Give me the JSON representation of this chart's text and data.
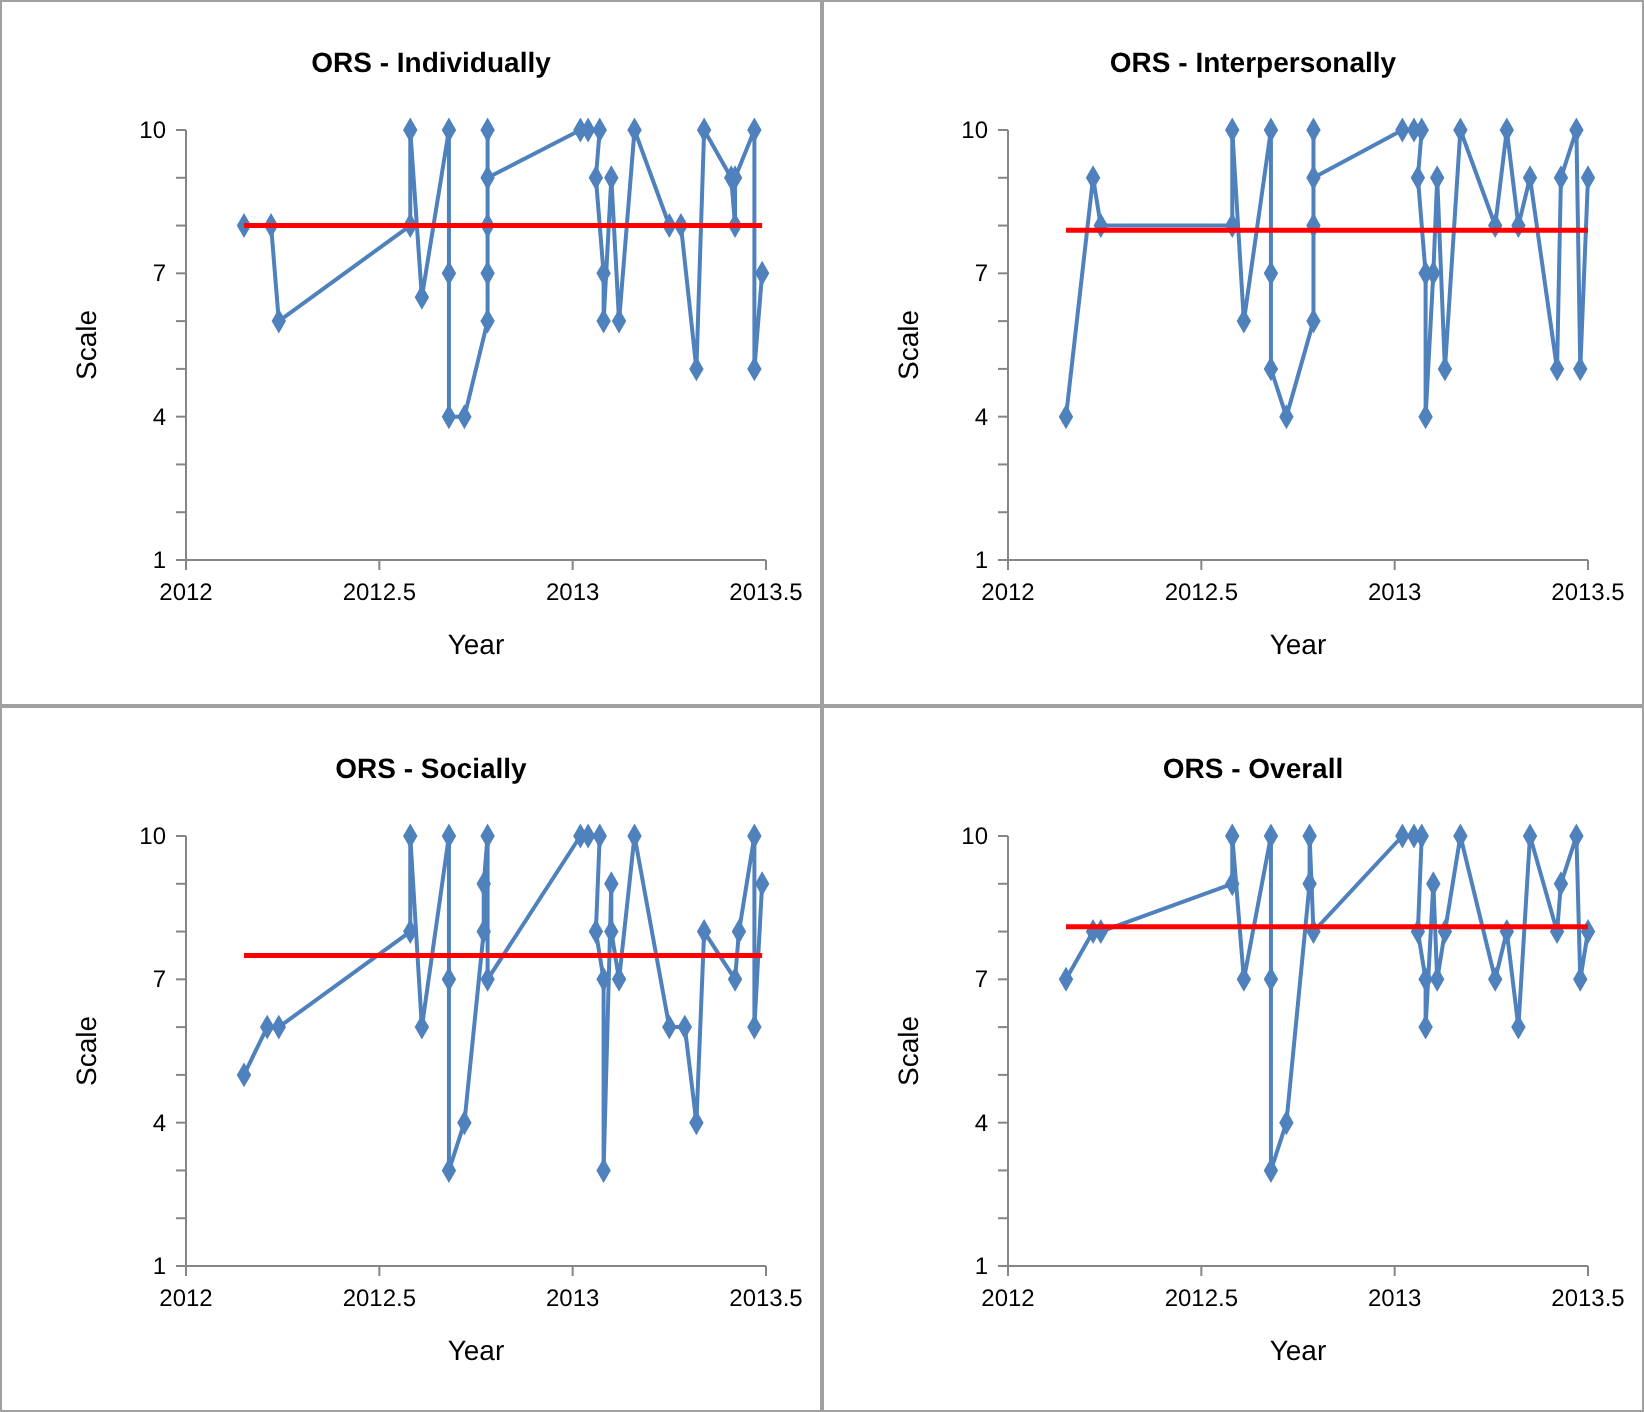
{
  "chart_data": [
    {
      "type": "line",
      "title": "ORS - Individually",
      "xlabel": "Year",
      "ylabel": "Scale",
      "xlim": [
        2012,
        2013.5
      ],
      "xticks": [
        2012,
        2012.5,
        2013,
        2013.5
      ],
      "ylim": [
        1,
        10
      ],
      "yticks": [
        1,
        {
          "value": 2,
          "label": null
        },
        {
          "value": 3,
          "label": null
        },
        4,
        {
          "value": 5,
          "label": null
        },
        {
          "value": 6,
          "label": null
        },
        7,
        {
          "value": 8,
          "label": null
        },
        {
          "value": 9,
          "label": null
        },
        10
      ],
      "series": [
        {
          "color": "#4f81bd",
          "marker": "diamond",
          "x": [
            2012.15,
            2012.22,
            2012.24,
            2012.58,
            2012.58,
            2012.61,
            2012.68,
            2012.68,
            2012.68,
            2012.72,
            2012.78,
            2012.78,
            2012.78,
            2012.78,
            2012.78,
            2013.02,
            2013.04,
            2013.07,
            2013.06,
            2013.08,
            2013.08,
            2013.1,
            2013.12,
            2013.16,
            2013.25,
            2013.28,
            2013.32,
            2013.34,
            2013.41,
            2013.42,
            2013.42,
            2013.47,
            2013.47,
            2013.49
          ],
          "values": [
            8,
            8,
            6,
            8,
            10,
            6.5,
            10,
            7,
            4,
            4,
            6,
            7,
            10,
            8,
            9,
            10,
            10,
            10,
            9,
            7,
            6,
            9,
            6,
            10,
            8,
            8,
            5,
            10,
            9,
            8,
            9,
            10,
            5,
            7
          ]
        },
        {
          "color": "#ff0000",
          "marker": "none",
          "x": [
            2012.15,
            2013.49
          ],
          "values": [
            8,
            8
          ]
        }
      ]
    },
    {
      "type": "line",
      "title": "ORS - Interpersonally",
      "xlabel": "Year",
      "ylabel": "Scale",
      "xlim": [
        2012,
        2013.5
      ],
      "xticks": [
        2012,
        2012.5,
        2013,
        2013.5
      ],
      "ylim": [
        1,
        10
      ],
      "yticks": [
        1,
        {
          "value": 2,
          "label": null
        },
        {
          "value": 3,
          "label": null
        },
        4,
        {
          "value": 5,
          "label": null
        },
        {
          "value": 6,
          "label": null
        },
        7,
        {
          "value": 8,
          "label": null
        },
        {
          "value": 9,
          "label": null
        },
        10
      ],
      "series": [
        {
          "color": "#4f81bd",
          "marker": "diamond",
          "x": [
            2012.15,
            2012.22,
            2012.24,
            2012.58,
            2012.58,
            2012.61,
            2012.68,
            2012.68,
            2012.68,
            2012.72,
            2012.79,
            2012.79,
            2012.79,
            2012.79,
            2013.02,
            2013.05,
            2013.07,
            2013.06,
            2013.08,
            2013.08,
            2013.1,
            2013.11,
            2013.13,
            2013.17,
            2013.26,
            2013.29,
            2013.32,
            2013.35,
            2013.42,
            2013.43,
            2013.47,
            2013.48,
            2013.5
          ],
          "values": [
            4,
            9,
            8,
            8,
            10,
            6,
            10,
            7,
            5,
            4,
            6,
            8,
            10,
            9,
            10,
            10,
            10,
            9,
            7,
            4,
            7,
            9,
            5,
            10,
            8,
            10,
            8,
            9,
            5,
            9,
            10,
            5,
            9
          ]
        },
        {
          "color": "#ff0000",
          "marker": "none",
          "x": [
            2012.15,
            2013.5
          ],
          "values": [
            7.9,
            7.9
          ]
        }
      ]
    },
    {
      "type": "line",
      "title": "ORS - Socially",
      "xlabel": "Year",
      "ylabel": "Scale",
      "xlim": [
        2012,
        2013.5
      ],
      "xticks": [
        2012,
        2012.5,
        2013,
        2013.5
      ],
      "ylim": [
        1,
        10
      ],
      "yticks": [
        1,
        {
          "value": 2,
          "label": null
        },
        {
          "value": 3,
          "label": null
        },
        4,
        {
          "value": 5,
          "label": null
        },
        {
          "value": 6,
          "label": null
        },
        7,
        {
          "value": 8,
          "label": null
        },
        {
          "value": 9,
          "label": null
        },
        10
      ],
      "series": [
        {
          "color": "#4f81bd",
          "marker": "diamond",
          "x": [
            2012.15,
            2012.21,
            2012.24,
            2012.58,
            2012.58,
            2012.61,
            2012.68,
            2012.68,
            2012.68,
            2012.72,
            2012.77,
            2012.77,
            2012.78,
            2012.78,
            2013.02,
            2013.04,
            2013.07,
            2013.06,
            2013.08,
            2013.08,
            2013.1,
            2013.1,
            2013.12,
            2013.16,
            2013.25,
            2013.29,
            2013.32,
            2013.34,
            2013.42,
            2013.43,
            2013.47,
            2013.47,
            2013.49
          ],
          "values": [
            5,
            6,
            6,
            8,
            10,
            6,
            10,
            7,
            3,
            4,
            8,
            9,
            10,
            7,
            10,
            10,
            10,
            8,
            7,
            3,
            9,
            8,
            7,
            10,
            6,
            6,
            4,
            8,
            7,
            8,
            10,
            6,
            9
          ]
        },
        {
          "color": "#ff0000",
          "marker": "none",
          "x": [
            2012.15,
            2013.49
          ],
          "values": [
            7.5,
            7.5
          ]
        }
      ]
    },
    {
      "type": "line",
      "title": "ORS - Overall",
      "xlabel": "Year",
      "ylabel": "Scale",
      "xlim": [
        2012,
        2013.5
      ],
      "xticks": [
        2012,
        2012.5,
        2013,
        2013.5
      ],
      "ylim": [
        1,
        10
      ],
      "yticks": [
        1,
        {
          "value": 2,
          "label": null
        },
        {
          "value": 3,
          "label": null
        },
        4,
        {
          "value": 5,
          "label": null
        },
        {
          "value": 6,
          "label": null
        },
        7,
        {
          "value": 8,
          "label": null
        },
        {
          "value": 9,
          "label": null
        },
        10
      ],
      "series": [
        {
          "color": "#4f81bd",
          "marker": "diamond",
          "x": [
            2012.15,
            2012.22,
            2012.24,
            2012.58,
            2012.58,
            2012.61,
            2012.68,
            2012.68,
            2012.68,
            2012.72,
            2012.78,
            2012.78,
            2012.79,
            2013.02,
            2013.05,
            2013.07,
            2013.06,
            2013.08,
            2013.08,
            2013.1,
            2013.11,
            2013.13,
            2013.17,
            2013.26,
            2013.29,
            2013.32,
            2013.35,
            2013.42,
            2013.43,
            2013.47,
            2013.48,
            2013.5
          ],
          "values": [
            7,
            8,
            8,
            9,
            10,
            7,
            10,
            7,
            3,
            4,
            9,
            10,
            8,
            10,
            10,
            10,
            8,
            7,
            6,
            9,
            7,
            8,
            10,
            7,
            8,
            6,
            10,
            8,
            9,
            10,
            7,
            8
          ]
        },
        {
          "color": "#ff0000",
          "marker": "none",
          "x": [
            2012.15,
            2013.5
          ],
          "values": [
            8.1,
            8.1
          ]
        }
      ]
    }
  ]
}
